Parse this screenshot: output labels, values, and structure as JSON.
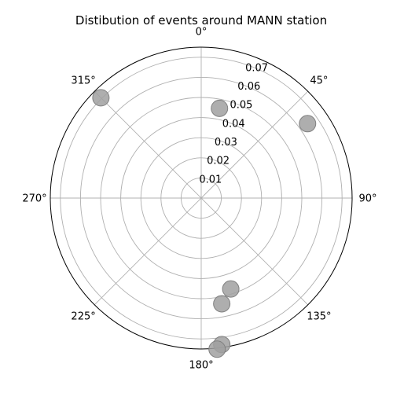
{
  "chart_data": {
    "type": "scatter",
    "projection": "polar",
    "title": "Distibution of events around MANN station",
    "theta_zero_location": "N",
    "theta_direction": "clockwise",
    "theta_tick_labels": [
      "0°",
      "45°",
      "90°",
      "135°",
      "180°",
      "225°",
      "270°",
      "315°"
    ],
    "theta_ticks_deg": [
      0,
      45,
      90,
      135,
      180,
      225,
      270,
      315
    ],
    "r_tick_labels": [
      "0.01",
      "0.02",
      "0.03",
      "0.04",
      "0.05",
      "0.06",
      "0.07"
    ],
    "r_ticks": [
      0.01,
      0.02,
      0.03,
      0.04,
      0.05,
      0.06,
      0.07
    ],
    "rlim": [
      0,
      0.075
    ],
    "grid": true,
    "marker_color": "#a0a0a0",
    "marker_edge_color": "#808080",
    "grid_color": "#b0b0b0",
    "points": [
      {
        "theta_deg": 11.5,
        "r": 0.0455
      },
      {
        "theta_deg": 55,
        "r": 0.0645
      },
      {
        "theta_deg": 315,
        "r": 0.0705
      },
      {
        "theta_deg": 162,
        "r": 0.0475
      },
      {
        "theta_deg": 169,
        "r": 0.0535
      },
      {
        "theta_deg": 172,
        "r": 0.0735
      },
      {
        "theta_deg": 174,
        "r": 0.0755
      }
    ]
  }
}
